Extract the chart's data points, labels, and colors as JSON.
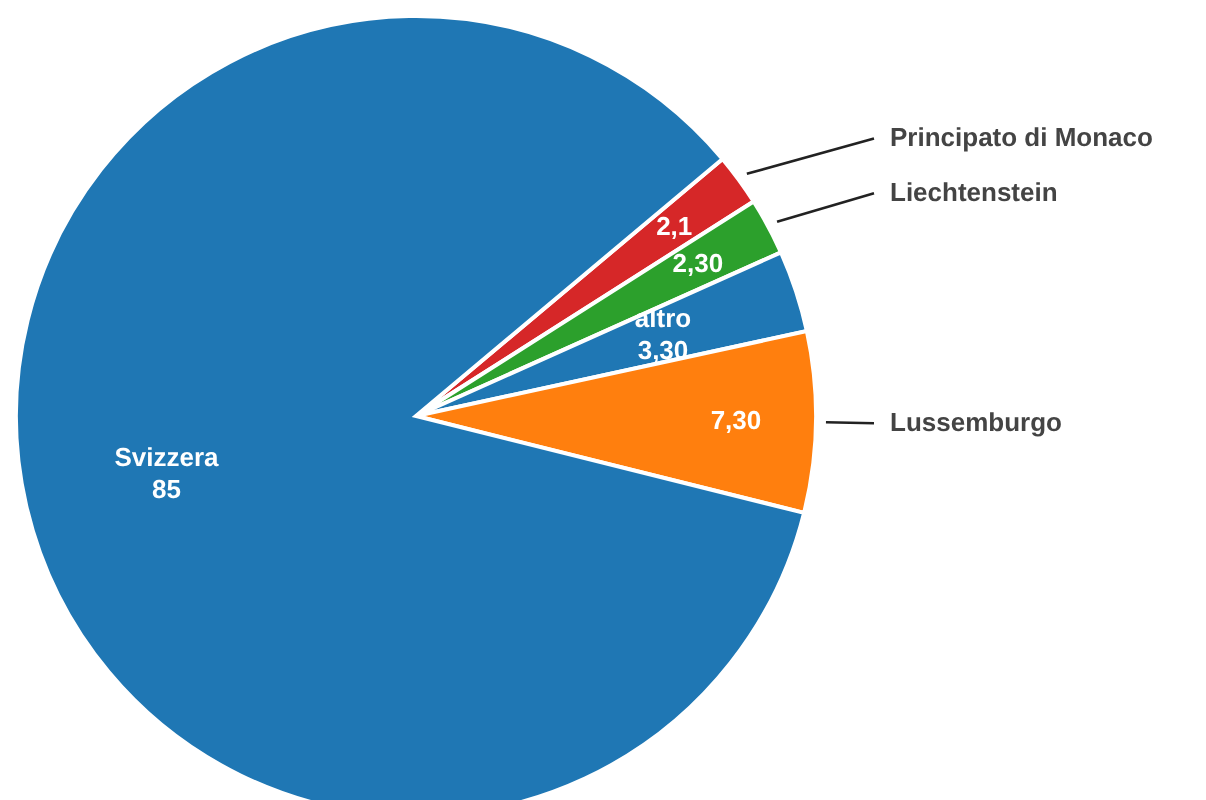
{
  "chart_data": {
    "type": "pie",
    "categories": [
      "Principato di Monaco",
      "Liechtenstein",
      "altro",
      "Lussemburgo",
      "Svizzera"
    ],
    "values": [
      2.1,
      2.3,
      3.3,
      7.3,
      85
    ],
    "value_labels": [
      "2,1",
      "2,30",
      "3,30",
      "7,30",
      "85"
    ],
    "colors": [
      "#d62728",
      "#2ca02c",
      "#1f77b4",
      "#ff7f0e",
      "#1f77b4"
    ]
  }
}
